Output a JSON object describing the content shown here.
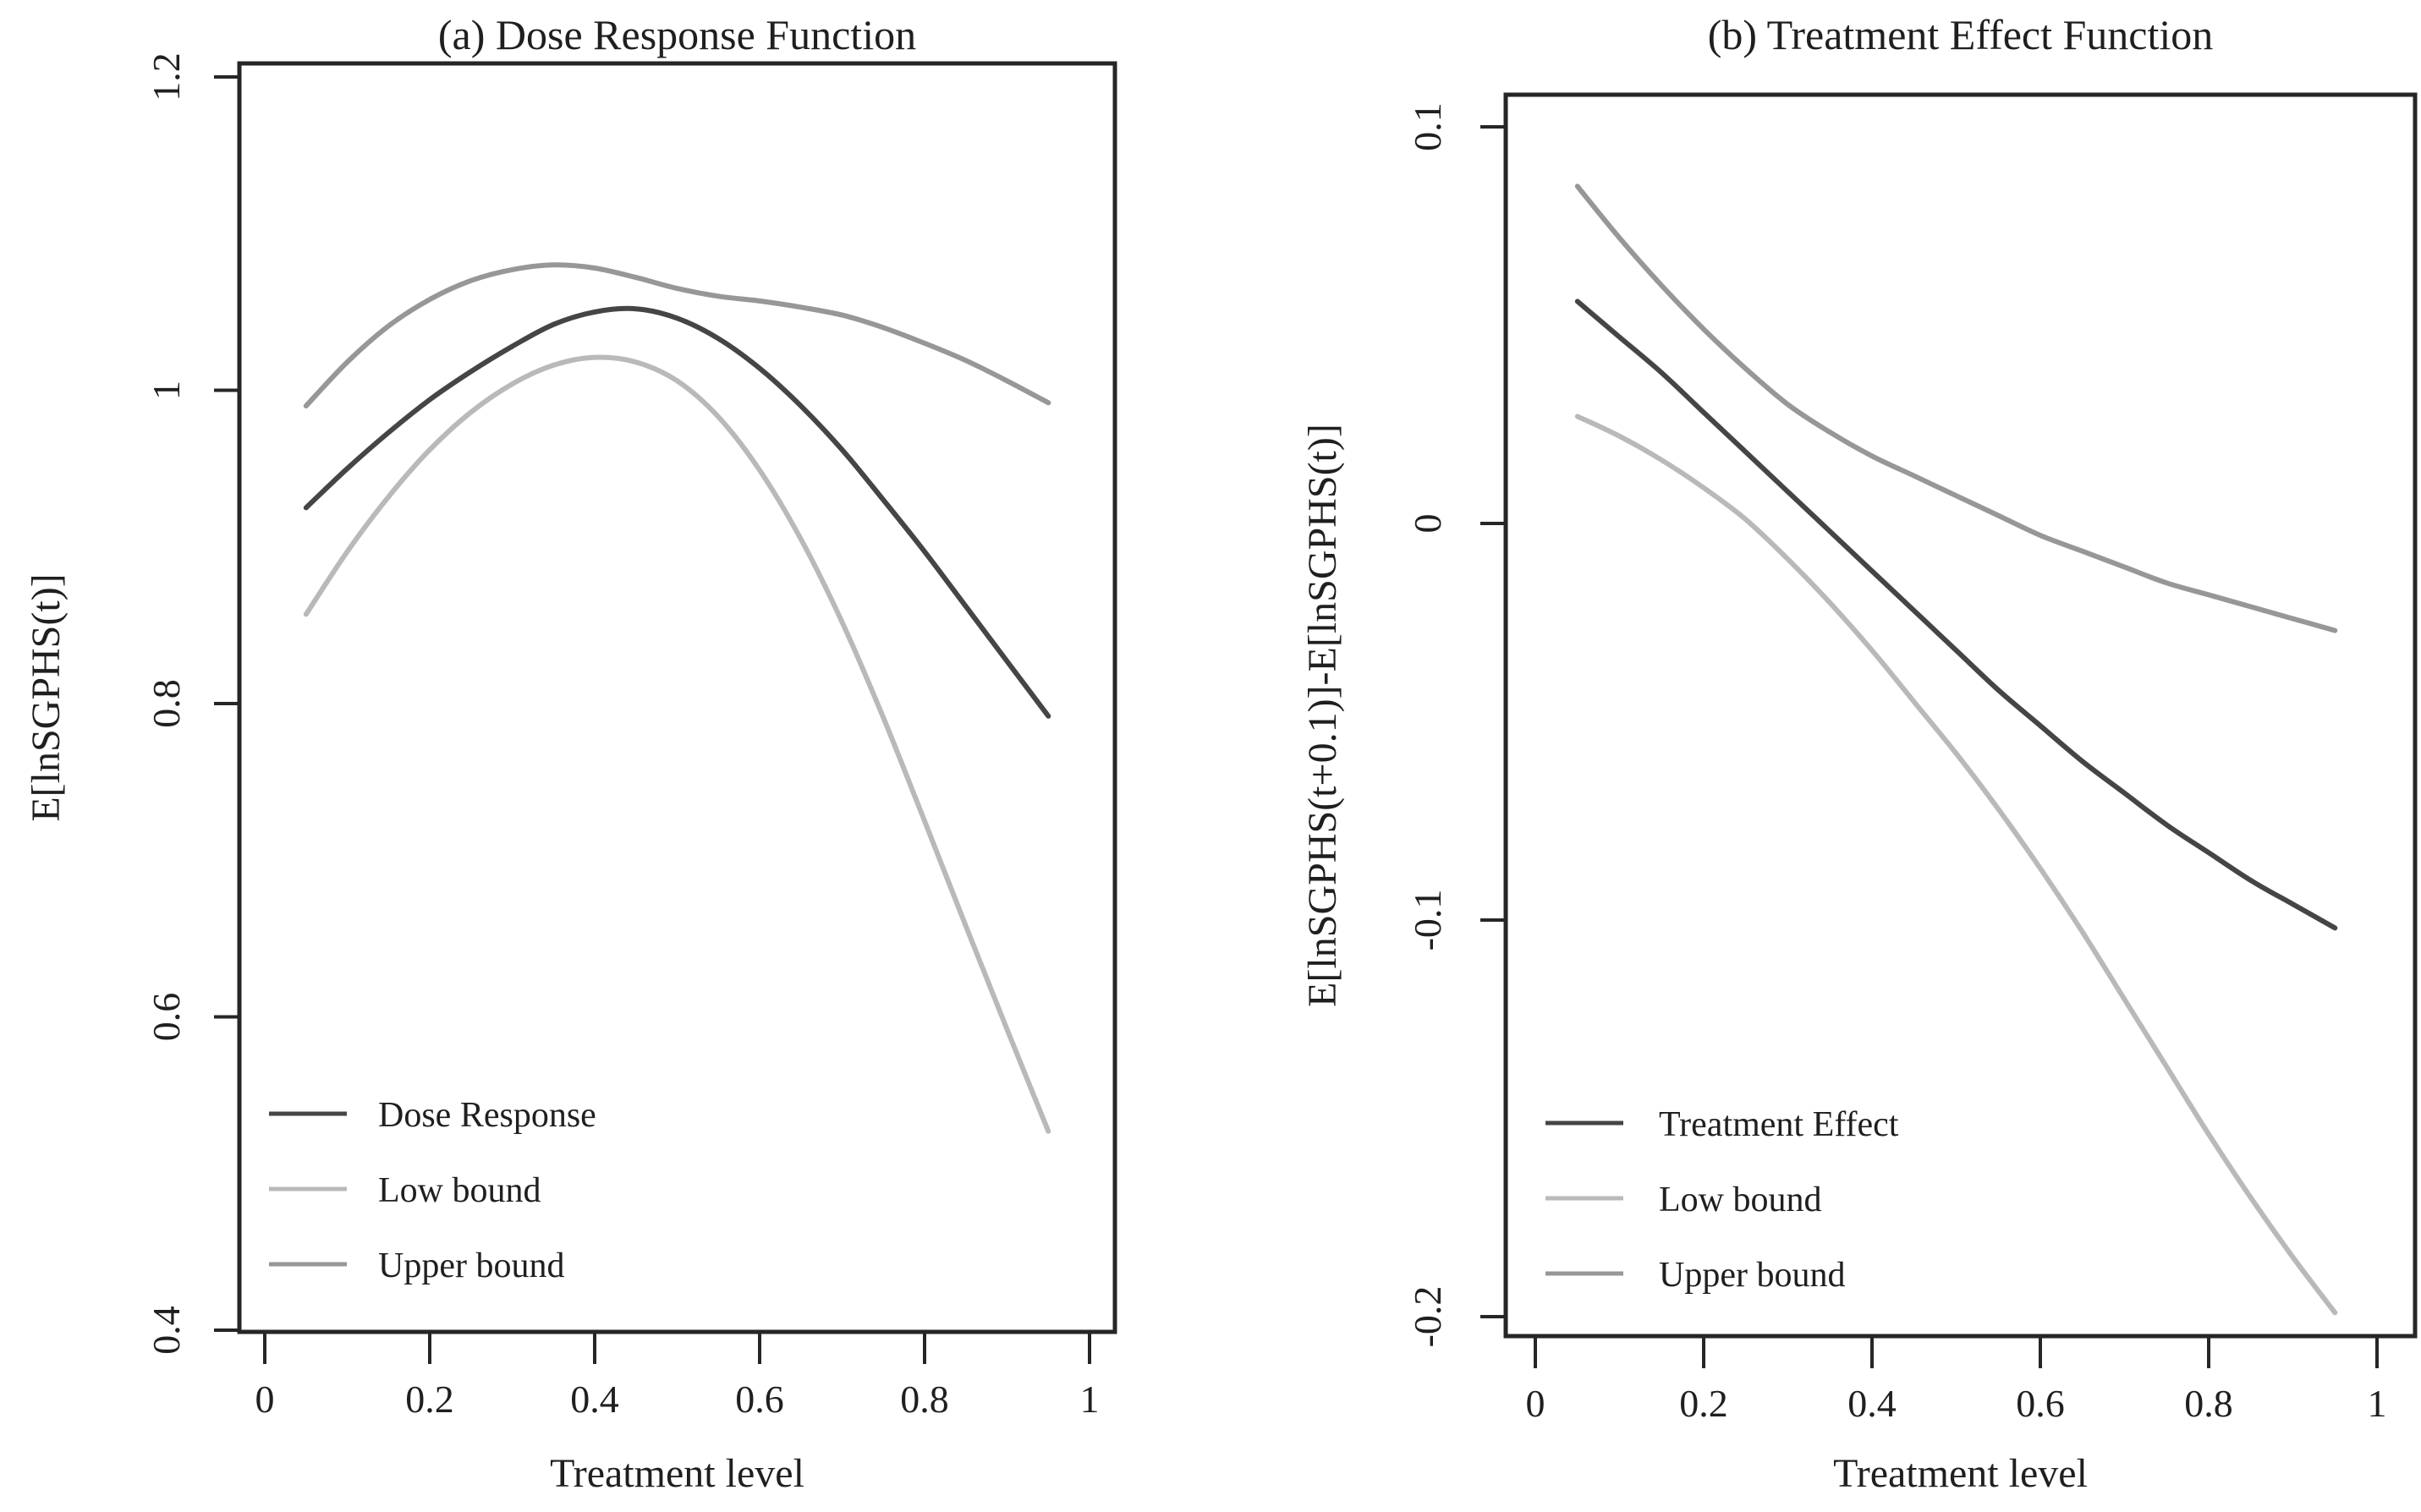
{
  "figure": {
    "background": "#ffffff",
    "text_color": "#1f1f1f",
    "frame_color": "#262626"
  },
  "chart_data": [
    {
      "id": "dose-response-panel",
      "type": "line",
      "title": "(a) Dose Response Function",
      "xlabel": "Treatment level",
      "ylabel": "E[lnSGPHS(t)]",
      "xlim": [
        0,
        1
      ],
      "ylim": [
        0.4,
        1.2
      ],
      "grid": false,
      "legend_position": "lower-left",
      "xticks": {
        "values": [
          0,
          0.2,
          0.4,
          0.6,
          0.8,
          1
        ],
        "labels": [
          "0",
          "0.2",
          "0.4",
          "0.6",
          "0.8",
          "1"
        ]
      },
      "yticks": {
        "values": [
          1.2,
          1,
          0.8,
          0.6,
          0.4
        ],
        "labels": [
          "1.2",
          "1",
          "0.8",
          "0.6",
          "0.4"
        ]
      },
      "x": [
        0.05,
        0.1,
        0.15,
        0.2,
        0.25,
        0.3,
        0.35,
        0.4,
        0.45,
        0.5,
        0.55,
        0.6,
        0.65,
        0.7,
        0.75,
        0.8,
        0.85,
        0.9,
        0.95
      ],
      "series": [
        {
          "id": "dose-response",
          "name": "Dose Response",
          "color": "#454545",
          "values": [
            0.925,
            0.95,
            0.973,
            0.994,
            1.012,
            1.028,
            1.042,
            1.05,
            1.052,
            1.046,
            1.033,
            1.014,
            0.99,
            0.962,
            0.93,
            0.897,
            0.862,
            0.827,
            0.792
          ]
        },
        {
          "id": "low-bound",
          "name": "Low bound",
          "color": "#b9b9b9",
          "values": [
            0.857,
            0.897,
            0.932,
            0.962,
            0.986,
            1.004,
            1.016,
            1.021,
            1.018,
            1.006,
            0.983,
            0.949,
            0.905,
            0.852,
            0.791,
            0.725,
            0.658,
            0.592,
            0.527
          ]
        },
        {
          "id": "upper-bound",
          "name": "Upper bound",
          "color": "#979797",
          "values": [
            0.99,
            1.018,
            1.041,
            1.058,
            1.07,
            1.077,
            1.08,
            1.078,
            1.072,
            1.065,
            1.06,
            1.057,
            1.053,
            1.048,
            1.04,
            1.03,
            1.019,
            1.006,
            0.992
          ]
        }
      ]
    },
    {
      "id": "treatment-effect-panel",
      "type": "line",
      "title": "(b) Treatment Effect Function",
      "xlabel": "Treatment level",
      "ylabel": "E[lnSGPHS(t+0.1)]-E[lnSGPHS(t)]",
      "xlim": [
        0,
        1
      ],
      "ylim": [
        -0.2,
        0.1
      ],
      "grid": false,
      "legend_position": "lower-left",
      "xticks": {
        "values": [
          0,
          0.2,
          0.4,
          0.6,
          0.8,
          1
        ],
        "labels": [
          "0",
          "0.2",
          "0.4",
          "0.6",
          "0.8",
          "1"
        ]
      },
      "yticks": {
        "values": [
          0.1,
          0,
          -0.1,
          -0.2
        ],
        "labels": [
          "0.1",
          "0",
          "-0.1",
          "-0.2"
        ]
      },
      "x": [
        0.05,
        0.1,
        0.15,
        0.2,
        0.25,
        0.3,
        0.35,
        0.4,
        0.45,
        0.5,
        0.55,
        0.6,
        0.65,
        0.7,
        0.75,
        0.8,
        0.85,
        0.9,
        0.95
      ],
      "series": [
        {
          "id": "treatment-effect",
          "name": "Treatment Effect",
          "color": "#454545",
          "values": [
            0.056,
            0.047,
            0.038,
            0.028,
            0.018,
            0.008,
            -0.002,
            -0.012,
            -0.022,
            -0.032,
            -0.042,
            -0.051,
            -0.06,
            -0.068,
            -0.076,
            -0.083,
            -0.09,
            -0.096,
            -0.102
          ]
        },
        {
          "id": "low-bound",
          "name": "Low bound",
          "color": "#b9b9b9",
          "values": [
            0.027,
            0.022,
            0.016,
            0.009,
            0.001,
            -0.009,
            -0.02,
            -0.032,
            -0.045,
            -0.058,
            -0.072,
            -0.087,
            -0.103,
            -0.12,
            -0.137,
            -0.154,
            -0.17,
            -0.185,
            -0.199
          ]
        },
        {
          "id": "upper-bound",
          "name": "Upper bound",
          "color": "#979797",
          "values": [
            0.085,
            0.072,
            0.06,
            0.049,
            0.039,
            0.03,
            0.023,
            0.017,
            0.012,
            0.007,
            0.002,
            -0.003,
            -0.007,
            -0.011,
            -0.015,
            -0.018,
            -0.021,
            -0.024,
            -0.027
          ]
        }
      ]
    }
  ]
}
